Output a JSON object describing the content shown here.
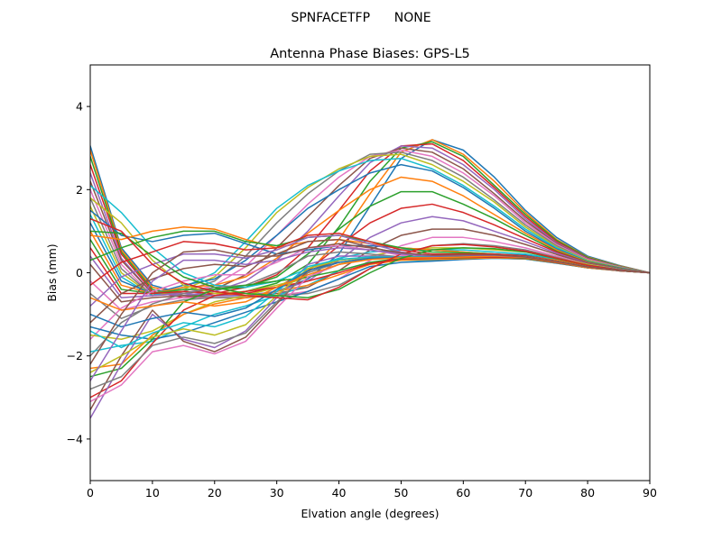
{
  "chart_data": {
    "type": "line",
    "suptitle": "SPNFACETFP      NONE",
    "title": "Antenna Phase Biases: GPS-L5",
    "xlabel": "Elvation angle (degrees)",
    "ylabel": "Bias (mm)",
    "xlim": [
      0,
      90
    ],
    "ylim": [
      -5,
      5
    ],
    "xticks": [
      0,
      10,
      20,
      30,
      40,
      50,
      60,
      70,
      80,
      90
    ],
    "yticks": [
      -4,
      -2,
      0,
      2,
      4
    ],
    "grid": false,
    "legend": "none",
    "colors": [
      "#1f77b4",
      "#ff7f0e",
      "#2ca02c",
      "#d62728",
      "#9467bd",
      "#8c564b",
      "#e377c2",
      "#7f7f7f",
      "#bcbd22",
      "#17becf"
    ],
    "x": [
      0,
      5,
      10,
      15,
      20,
      25,
      30,
      35,
      40,
      45,
      50,
      55,
      60,
      65,
      70,
      75,
      80,
      85,
      90
    ],
    "series": [
      {
        "values": [
          3.05,
          0.6,
          -0.3,
          -0.5,
          -0.55,
          -0.55,
          -0.45,
          -0.15,
          0.45,
          1.6,
          2.75,
          3.2,
          2.95,
          2.3,
          1.5,
          0.85,
          0.4,
          0.18,
          0.0
        ]
      },
      {
        "values": [
          2.95,
          0.55,
          -0.35,
          -0.5,
          -0.55,
          -0.5,
          -0.35,
          0.0,
          0.8,
          1.9,
          2.9,
          3.2,
          2.85,
          2.2,
          1.45,
          0.8,
          0.38,
          0.17,
          0.0
        ]
      },
      {
        "values": [
          2.8,
          0.5,
          -0.4,
          -0.55,
          -0.55,
          -0.45,
          -0.25,
          0.2,
          1.1,
          2.2,
          3.0,
          3.15,
          2.8,
          2.1,
          1.4,
          0.78,
          0.37,
          0.16,
          0.0
        ]
      },
      {
        "values": [
          2.6,
          0.45,
          -0.45,
          -0.6,
          -0.5,
          -0.35,
          -0.05,
          0.6,
          1.5,
          2.45,
          3.05,
          3.1,
          2.7,
          2.05,
          1.35,
          0.75,
          0.35,
          0.15,
          0.0
        ]
      },
      {
        "values": [
          2.4,
          0.35,
          -0.5,
          -0.55,
          -0.45,
          -0.2,
          0.3,
          1.0,
          1.85,
          2.65,
          3.05,
          3.0,
          2.6,
          2.0,
          1.3,
          0.72,
          0.34,
          0.15,
          0.0
        ]
      },
      {
        "values": [
          2.2,
          0.3,
          -0.5,
          -0.5,
          -0.4,
          -0.05,
          0.6,
          1.35,
          2.1,
          2.75,
          3.0,
          2.9,
          2.5,
          1.9,
          1.25,
          0.7,
          0.33,
          0.14,
          0.0
        ]
      },
      {
        "values": [
          2.0,
          0.2,
          -0.55,
          -0.5,
          -0.3,
          0.15,
          0.9,
          1.65,
          2.3,
          2.8,
          2.95,
          2.8,
          2.4,
          1.85,
          1.2,
          0.68,
          0.32,
          0.14,
          0.0
        ]
      },
      {
        "values": [
          1.8,
          0.1,
          -0.55,
          -0.45,
          -0.2,
          0.4,
          1.2,
          1.9,
          2.45,
          2.85,
          2.9,
          2.7,
          2.3,
          1.75,
          1.15,
          0.65,
          0.3,
          0.13,
          0.0
        ]
      },
      {
        "values": [
          1.6,
          0.0,
          -0.55,
          -0.4,
          -0.1,
          0.6,
          1.45,
          2.05,
          2.5,
          2.8,
          2.85,
          2.6,
          2.2,
          1.7,
          1.1,
          0.62,
          0.3,
          0.13,
          0.0
        ]
      },
      {
        "values": [
          1.4,
          -0.1,
          -0.55,
          -0.35,
          0.0,
          0.75,
          1.55,
          2.1,
          2.45,
          2.7,
          2.75,
          2.5,
          2.1,
          1.6,
          1.05,
          0.6,
          0.28,
          0.12,
          0.0
        ]
      },
      {
        "values": [
          1.2,
          -0.2,
          -0.5,
          -0.3,
          -0.15,
          0.3,
          0.9,
          1.55,
          2.0,
          2.4,
          2.6,
          2.45,
          2.05,
          1.55,
          1.0,
          0.57,
          0.27,
          0.12,
          0.0
        ]
      },
      {
        "values": [
          1.0,
          -0.3,
          -0.5,
          -0.35,
          -0.3,
          -0.1,
          0.35,
          0.95,
          1.5,
          2.0,
          2.3,
          2.2,
          1.85,
          1.4,
          0.95,
          0.55,
          0.26,
          0.11,
          0.0
        ]
      },
      {
        "values": [
          0.8,
          -0.4,
          -0.5,
          -0.4,
          -0.4,
          -0.35,
          -0.1,
          0.45,
          1.05,
          1.6,
          1.95,
          1.95,
          1.65,
          1.3,
          0.9,
          0.52,
          0.25,
          0.11,
          0.0
        ]
      },
      {
        "values": [
          0.6,
          -0.5,
          -0.5,
          -0.45,
          -0.5,
          -0.5,
          -0.35,
          0.05,
          0.65,
          1.2,
          1.55,
          1.65,
          1.45,
          1.15,
          0.82,
          0.5,
          0.24,
          0.1,
          0.0
        ]
      },
      {
        "values": [
          0.4,
          -0.6,
          -0.55,
          -0.5,
          -0.55,
          -0.55,
          -0.45,
          -0.2,
          0.3,
          0.85,
          1.2,
          1.35,
          1.25,
          1.0,
          0.75,
          0.47,
          0.23,
          0.1,
          0.0
        ]
      },
      {
        "values": [
          0.2,
          -0.7,
          -0.6,
          -0.55,
          -0.6,
          -0.6,
          -0.5,
          -0.35,
          0.05,
          0.55,
          0.9,
          1.05,
          1.05,
          0.9,
          0.68,
          0.44,
          0.22,
          0.1,
          0.0
        ]
      },
      {
        "values": [
          -0.2,
          -0.9,
          -0.7,
          -0.6,
          -0.6,
          -0.6,
          -0.55,
          -0.45,
          -0.15,
          0.3,
          0.65,
          0.85,
          0.85,
          0.75,
          0.6,
          0.4,
          0.2,
          0.09,
          0.0
        ]
      },
      {
        "values": [
          -0.5,
          -1.1,
          -0.8,
          -0.65,
          -0.6,
          -0.6,
          -0.55,
          -0.5,
          -0.3,
          0.1,
          0.45,
          0.65,
          0.7,
          0.65,
          0.55,
          0.37,
          0.19,
          0.09,
          0.0
        ]
      },
      {
        "values": [
          1.8,
          1.2,
          0.3,
          -0.3,
          -0.5,
          -0.45,
          -0.3,
          -0.1,
          0.2,
          0.4,
          0.55,
          0.6,
          0.6,
          0.55,
          0.5,
          0.35,
          0.2,
          0.08,
          0.0
        ]
      },
      {
        "values": [
          2.1,
          1.45,
          0.6,
          0.0,
          -0.3,
          -0.35,
          -0.2,
          0.1,
          0.35,
          0.5,
          0.55,
          0.55,
          0.55,
          0.5,
          0.45,
          0.33,
          0.18,
          0.08,
          0.0
        ]
      },
      {
        "values": [
          1.5,
          0.9,
          0.75,
          0.9,
          0.95,
          0.7,
          0.45,
          0.55,
          0.65,
          0.65,
          0.6,
          0.55,
          0.5,
          0.45,
          0.42,
          0.3,
          0.17,
          0.07,
          0.0
        ]
      },
      {
        "values": [
          0.9,
          0.8,
          1.0,
          1.1,
          1.05,
          0.8,
          0.6,
          0.75,
          0.8,
          0.7,
          0.6,
          0.55,
          0.5,
          0.45,
          0.4,
          0.3,
          0.16,
          0.07,
          0.0
        ]
      },
      {
        "values": [
          0.3,
          0.6,
          0.85,
          1.0,
          1.0,
          0.75,
          0.65,
          0.85,
          0.9,
          0.75,
          0.6,
          0.5,
          0.48,
          0.45,
          0.4,
          0.28,
          0.15,
          0.06,
          0.0
        ]
      },
      {
        "values": [
          -0.3,
          0.25,
          0.5,
          0.75,
          0.7,
          0.55,
          0.6,
          0.9,
          0.95,
          0.75,
          0.55,
          0.45,
          0.45,
          0.45,
          0.4,
          0.28,
          0.15,
          0.06,
          0.0
        ]
      },
      {
        "values": [
          -0.8,
          -0.1,
          0.2,
          0.45,
          0.45,
          0.35,
          0.55,
          0.85,
          0.9,
          0.7,
          0.5,
          0.4,
          0.42,
          0.42,
          0.38,
          0.27,
          0.14,
          0.06,
          0.0
        ]
      },
      {
        "values": [
          -1.2,
          -0.5,
          -0.15,
          0.1,
          0.2,
          0.15,
          0.45,
          0.75,
          0.8,
          0.62,
          0.45,
          0.38,
          0.4,
          0.4,
          0.37,
          0.26,
          0.14,
          0.05,
          0.0
        ]
      },
      {
        "values": [
          -1.6,
          -0.85,
          -0.45,
          -0.2,
          -0.05,
          -0.05,
          0.25,
          0.6,
          0.65,
          0.55,
          0.42,
          0.36,
          0.38,
          0.38,
          0.36,
          0.25,
          0.13,
          0.05,
          0.0
        ]
      },
      {
        "values": [
          -2.0,
          -1.2,
          -0.75,
          -0.5,
          -0.35,
          -0.3,
          0.0,
          0.4,
          0.5,
          0.45,
          0.38,
          0.34,
          0.36,
          0.37,
          0.35,
          0.24,
          0.13,
          0.05,
          0.0
        ]
      },
      {
        "values": [
          -1.5,
          -1.6,
          -1.4,
          -1.0,
          -0.7,
          -0.55,
          -0.35,
          -0.1,
          0.2,
          0.35,
          0.35,
          0.32,
          0.34,
          0.36,
          0.34,
          0.24,
          0.12,
          0.05,
          0.0
        ]
      },
      {
        "values": [
          -1.9,
          -1.75,
          -1.65,
          -1.3,
          -1.0,
          -0.8,
          -0.55,
          -0.3,
          0.05,
          0.25,
          0.3,
          0.3,
          0.33,
          0.35,
          0.33,
          0.23,
          0.12,
          0.05,
          0.0
        ]
      },
      {
        "values": [
          -1.3,
          -1.5,
          -1.6,
          -1.45,
          -1.2,
          -0.95,
          -0.7,
          -0.45,
          -0.15,
          0.15,
          0.25,
          0.28,
          0.32,
          0.35,
          0.33,
          0.23,
          0.12,
          0.05,
          0.0
        ]
      },
      {
        "values": [
          -2.3,
          -2.2,
          -1.5,
          -1.0,
          -0.75,
          -0.6,
          -0.45,
          -0.3,
          -0.05,
          0.2,
          0.3,
          0.32,
          0.34,
          0.36,
          0.34,
          0.24,
          0.12,
          0.05,
          0.0
        ]
      },
      {
        "values": [
          -2.5,
          -2.3,
          -1.6,
          -0.7,
          -0.4,
          -0.3,
          -0.2,
          -0.1,
          0.05,
          0.25,
          0.35,
          0.35,
          0.36,
          0.38,
          0.35,
          0.25,
          0.13,
          0.05,
          0.0
        ]
      },
      {
        "values": [
          -3.0,
          -2.6,
          -1.7,
          -0.9,
          -0.55,
          -0.45,
          -0.35,
          -0.2,
          0.0,
          0.22,
          0.33,
          0.35,
          0.37,
          0.38,
          0.36,
          0.25,
          0.13,
          0.05,
          0.0
        ]
      },
      {
        "values": [
          -3.5,
          -2.2,
          -1.0,
          -1.6,
          -1.8,
          -1.4,
          -0.6,
          0.2,
          0.4,
          0.4,
          0.38,
          0.38,
          0.4,
          0.42,
          0.38,
          0.27,
          0.14,
          0.06,
          0.0
        ]
      },
      {
        "values": [
          -3.3,
          -2.0,
          -0.9,
          -1.65,
          -1.9,
          -1.55,
          -0.75,
          0.05,
          0.3,
          0.38,
          0.38,
          0.38,
          0.4,
          0.42,
          0.38,
          0.27,
          0.14,
          0.06,
          0.0
        ]
      },
      {
        "values": [
          -3.1,
          -2.7,
          -1.9,
          -1.75,
          -1.95,
          -1.65,
          -0.85,
          -0.1,
          0.2,
          0.33,
          0.36,
          0.37,
          0.4,
          0.42,
          0.38,
          0.27,
          0.14,
          0.06,
          0.0
        ]
      },
      {
        "values": [
          -2.8,
          -2.5,
          -1.75,
          -1.55,
          -1.7,
          -1.45,
          -0.7,
          0.0,
          0.25,
          0.35,
          0.37,
          0.38,
          0.4,
          0.42,
          0.38,
          0.27,
          0.14,
          0.06,
          0.0
        ]
      },
      {
        "values": [
          -2.4,
          -2.0,
          -1.55,
          -1.35,
          -1.5,
          -1.25,
          -0.55,
          0.1,
          0.3,
          0.37,
          0.38,
          0.38,
          0.4,
          0.42,
          0.38,
          0.27,
          0.14,
          0.06,
          0.0
        ]
      },
      {
        "values": [
          -1.4,
          -1.8,
          -1.45,
          -1.2,
          -1.3,
          -1.05,
          -0.45,
          0.15,
          0.32,
          0.38,
          0.38,
          0.38,
          0.4,
          0.42,
          0.38,
          0.27,
          0.14,
          0.06,
          0.0
        ]
      },
      {
        "values": [
          -1.0,
          -1.3,
          -1.1,
          -0.95,
          -1.05,
          -0.85,
          -0.4,
          0.05,
          0.25,
          0.35,
          0.37,
          0.37,
          0.39,
          0.41,
          0.37,
          0.26,
          0.13,
          0.06,
          0.0
        ]
      },
      {
        "values": [
          -0.6,
          -0.9,
          -0.8,
          -0.7,
          -0.8,
          -0.7,
          -0.35,
          -0.05,
          0.2,
          0.32,
          0.36,
          0.36,
          0.38,
          0.4,
          0.37,
          0.26,
          0.13,
          0.06,
          0.0
        ]
      },
      {
        "values": [
          1.0,
          0.95,
          0.4,
          -0.1,
          -0.35,
          -0.5,
          -0.55,
          -0.6,
          -0.4,
          0.0,
          0.35,
          0.55,
          0.6,
          0.58,
          0.5,
          0.34,
          0.18,
          0.07,
          0.0
        ]
      },
      {
        "values": [
          1.3,
          1.0,
          0.2,
          -0.25,
          -0.45,
          -0.55,
          -0.6,
          -0.65,
          -0.35,
          0.1,
          0.45,
          0.65,
          0.68,
          0.62,
          0.52,
          0.35,
          0.18,
          0.07,
          0.0
        ]
      },
      {
        "values": [
          -2.6,
          -1.4,
          -0.2,
          0.3,
          0.3,
          0.2,
          0.3,
          0.5,
          0.6,
          0.55,
          0.45,
          0.4,
          0.42,
          0.42,
          0.38,
          0.27,
          0.14,
          0.06,
          0.0
        ]
      },
      {
        "values": [
          -2.2,
          -1.0,
          0.0,
          0.5,
          0.55,
          0.4,
          0.4,
          0.6,
          0.7,
          0.6,
          0.48,
          0.42,
          0.43,
          0.43,
          0.38,
          0.27,
          0.14,
          0.06,
          0.0
        ]
      }
    ]
  }
}
